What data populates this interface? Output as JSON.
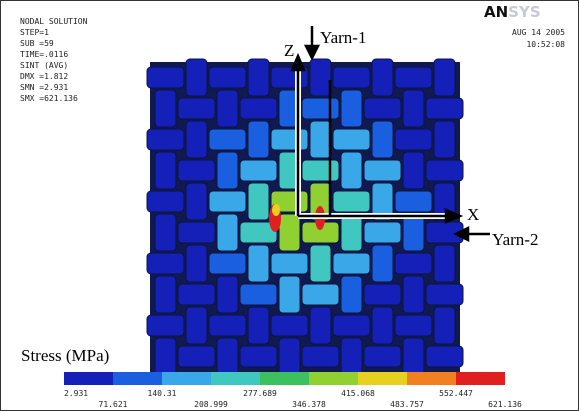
{
  "header": {
    "lines": [
      "NODAL SOLUTION",
      "STEP=1",
      "SUB =59",
      "TIME=.0116",
      "SINT      (AVG)",
      "DMX =1.812",
      "SMN =2.931",
      "SMX =621.136"
    ],
    "logo": [
      "AN",
      "SYS"
    ],
    "date": "AUG 14 2005",
    "time": "10:52:08"
  },
  "annotations": {
    "z_axis": "Z",
    "x_axis": "X",
    "yarn_1": "Yarn-1",
    "yarn_2": "Yarn-2",
    "stress_label": "Stress (MPa)"
  },
  "legend": {
    "labels": [
      "2.931",
      "71.621",
      "140.31",
      "208.999",
      "277.689",
      "346.378",
      "415.068",
      "483.757",
      "552.447",
      "621.136"
    ],
    "colors": [
      "#1420b8",
      "#1a5fe0",
      "#3aa8e8",
      "#40c8c0",
      "#3cc060",
      "#90d030",
      "#e8d020",
      "#f08020",
      "#e02020"
    ]
  }
}
